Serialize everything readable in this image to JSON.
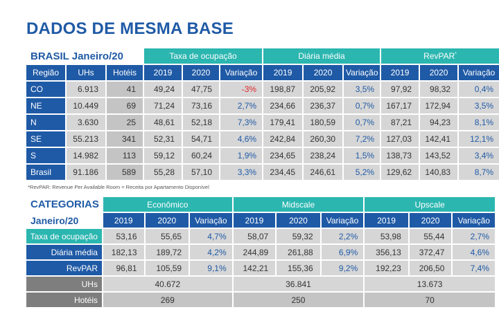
{
  "title": "DADOS DE MESMA BASE",
  "table1": {
    "caption": "BRASIL Janeiro/20",
    "groups": [
      "Taxa de ocupação",
      "Diária média",
      "RevPAR"
    ],
    "revpar_mark": "*",
    "headers": [
      "Região",
      "UHs",
      "Hotéis",
      "2019",
      "2020",
      "Variação",
      "2019",
      "2020",
      "Variação",
      "2019",
      "2020",
      "Variação"
    ],
    "rows": [
      {
        "region": "CO",
        "uhs": "6.913",
        "hoteis": "41",
        "t19": "49,24",
        "t20": "47,75",
        "tvar": "-3%",
        "d19": "198,87",
        "d20": "205,92",
        "dvar": "3,5%",
        "r19": "97,92",
        "r20": "98,32",
        "rvar": "0,4%"
      },
      {
        "region": "NE",
        "uhs": "10.449",
        "hoteis": "69",
        "t19": "71,24",
        "t20": "73,16",
        "tvar": "2,7%",
        "d19": "234,66",
        "d20": "236,37",
        "dvar": "0,7%",
        "r19": "167,17",
        "r20": "172,94",
        "rvar": "3,5%"
      },
      {
        "region": "N",
        "uhs": "3.630",
        "hoteis": "25",
        "t19": "48,61",
        "t20": "52,18",
        "tvar": "7,3%",
        "d19": "179,41",
        "d20": "180,59",
        "dvar": "0,7%",
        "r19": "87,21",
        "r20": "94,23",
        "rvar": "8,1%"
      },
      {
        "region": "SE",
        "uhs": "55.213",
        "hoteis": "341",
        "t19": "52,31",
        "t20": "54,71",
        "tvar": "4,6%",
        "d19": "242,84",
        "d20": "260,30",
        "dvar": "7,2%",
        "r19": "127,03",
        "r20": "142,41",
        "rvar": "12,1%"
      },
      {
        "region": "S",
        "uhs": "14.982",
        "hoteis": "113",
        "t19": "59,12",
        "t20": "60,24",
        "tvar": "1,9%",
        "d19": "234,65",
        "d20": "238,24",
        "dvar": "1,5%",
        "r19": "138,73",
        "r20": "143,52",
        "rvar": "3,4%"
      },
      {
        "region": "Brasil",
        "uhs": "91.186",
        "hoteis": "589",
        "t19": "55,28",
        "t20": "57,10",
        "tvar": "3,3%",
        "d19": "234,45",
        "d20": "246,61",
        "dvar": "5,2%",
        "r19": "129,62",
        "r20": "140,83",
        "rvar": "8,7%"
      }
    ],
    "footnote": "*RevPAR: Revenue Per Available Room = Receita por Apartamento Disponível"
  },
  "table2": {
    "caption": "CATEGORIAS",
    "subcaption": "Janeiro/20",
    "groups": [
      "Econômico",
      "Midscale",
      "Upscale"
    ],
    "headers": [
      "2019",
      "2020",
      "Variação",
      "2019",
      "2020",
      "Variação",
      "2019",
      "2020",
      "Variação"
    ],
    "rows": [
      {
        "label": "Taxa de ocupação",
        "e19": "53,16",
        "e20": "55,65",
        "evar": "4,7%",
        "m19": "58,07",
        "m20": "59,32",
        "mvar": "2,2%",
        "u19": "53,98",
        "u20": "55,44",
        "uvar": "2,7%"
      },
      {
        "label": "Diária média",
        "e19": "182,13",
        "e20": "189,72",
        "evar": "4,2%",
        "m19": "244,89",
        "m20": "261,88",
        "mvar": "6,9%",
        "u19": "356,13",
        "u20": "372,47",
        "uvar": "4,6%"
      },
      {
        "label": "RevPAR",
        "e19": "96,81",
        "e20": "105,59",
        "evar": "9,1%",
        "m19": "142,21",
        "m20": "155,36",
        "mvar": "9,2%",
        "u19": "192,23",
        "u20": "206,50",
        "uvar": "7,4%"
      }
    ],
    "uhs": {
      "label": "UHs",
      "eco": "40.672",
      "mid": "36.841",
      "up": "13.673"
    },
    "hoteis": {
      "label": "Hotéis",
      "eco": "269",
      "mid": "250",
      "up": "70"
    }
  },
  "colors": {
    "title_blue": "#1f5aa6",
    "teal": "#2cb6b0",
    "gray_light": "#d6d6d6",
    "gray_dark": "#7e7e7e",
    "negative": "#e0262b"
  }
}
